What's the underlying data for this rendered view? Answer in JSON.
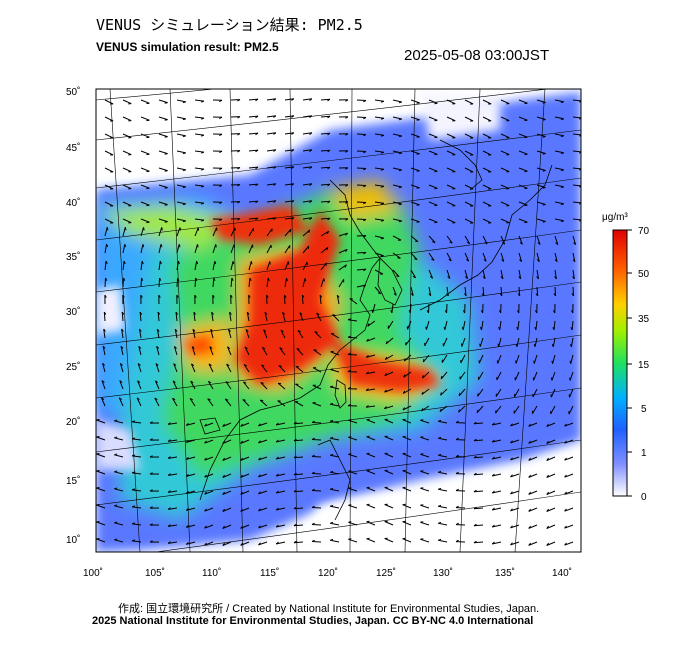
{
  "title_jp": "VENUS シミュレーション結果: PM2.5",
  "title_en": "VENUS simulation result: PM2.5",
  "timestamp": "2025-05-08 03:00JST",
  "lat_labels": [
    "50˚",
    "45˚",
    "40˚",
    "35˚",
    "30˚",
    "25˚",
    "20˚",
    "15˚",
    "10˚"
  ],
  "lon_labels": [
    "100˚",
    "105˚",
    "110˚",
    "115˚",
    "120˚",
    "125˚",
    "130˚",
    "135˚",
    "140˚"
  ],
  "colorbar": {
    "unit": "μg/m³",
    "ticks": [
      "70",
      "50",
      "35",
      "15",
      "5",
      "1",
      "0"
    ],
    "colors": [
      "#f0f0ff",
      "#6080ff",
      "#2a9fff",
      "#00e0e0",
      "#40e040",
      "#c8f000",
      "#ffa000",
      "#ff3000",
      "#e00000"
    ]
  },
  "credit_jp": "作成: 国立環境研究所 / Created by National Institute for Environmental Studies, Japan.",
  "credit_en": "2025 National Institute for Environmental Studies, Japan. CC BY-NC 4.0 International"
}
